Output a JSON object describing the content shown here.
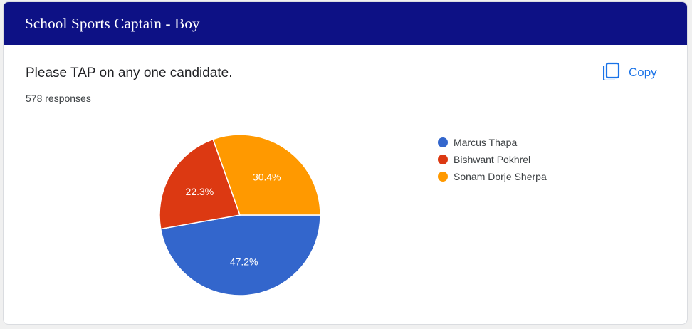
{
  "header": {
    "title": "School Sports Captain - Boy"
  },
  "question": {
    "text": "Please TAP on any one candidate.",
    "responses": "578 responses"
  },
  "copy": {
    "label": "Copy",
    "icon": "copy-icon"
  },
  "colors": {
    "header_bg": "#0d1185",
    "accent": "#1a73e8"
  },
  "chart_data": {
    "type": "pie",
    "title": "",
    "legend_placement": "right",
    "slices": [
      {
        "label": "Marcus Thapa",
        "value": 47.2,
        "display": "47.2%",
        "color": "#3366cc"
      },
      {
        "label": "Bishwant Pokhrel",
        "value": 22.3,
        "display": "22.3%",
        "color": "#dc3912"
      },
      {
        "label": "Sonam Dorje Sherpa",
        "value": 30.4,
        "display": "30.4%",
        "color": "#ff9900"
      }
    ]
  }
}
